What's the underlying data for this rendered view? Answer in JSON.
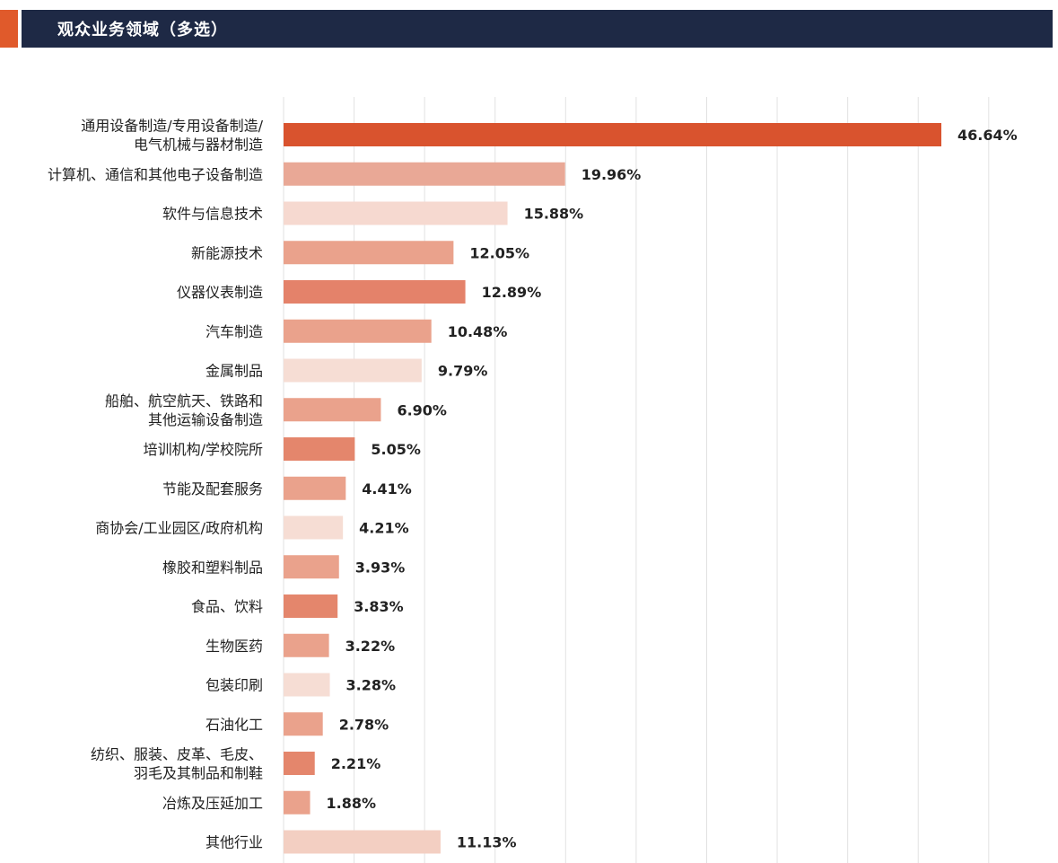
{
  "header": {
    "title": "观众业务领域（多选）",
    "accent_color": "#e05a2b",
    "bar_color": "#1e2945"
  },
  "chart_data": {
    "type": "bar",
    "orientation": "horizontal",
    "title": "观众业务领域（多选）",
    "xlim": [
      0,
      50
    ],
    "grid": true,
    "categories": [
      [
        "通用设备制造/专用设备制造/",
        "电气机械与器材制造"
      ],
      [
        "计算机、通信和其他电子设备制造"
      ],
      [
        "软件与信息技术"
      ],
      [
        "新能源技术"
      ],
      [
        "仪器仪表制造"
      ],
      [
        "汽车制造"
      ],
      [
        "金属制品"
      ],
      [
        "船舶、航空航天、铁路和",
        "其他运输设备制造"
      ],
      [
        "培训机构/学校院所"
      ],
      [
        "节能及配套服务"
      ],
      [
        "商协会/工业园区/政府机构"
      ],
      [
        "橡胶和塑料制品"
      ],
      [
        "食品、饮料"
      ],
      [
        "生物医药"
      ],
      [
        "包装印刷"
      ],
      [
        "石油化工"
      ],
      [
        "纺织、服装、皮革、毛皮、",
        "羽毛及其制品和制鞋"
      ],
      [
        "冶炼及压延加工"
      ],
      [
        "其他行业"
      ]
    ],
    "values": [
      46.64,
      19.96,
      15.88,
      12.05,
      12.89,
      10.48,
      9.79,
      6.9,
      5.05,
      4.41,
      4.21,
      3.93,
      3.83,
      3.22,
      3.28,
      2.78,
      2.21,
      1.88,
      11.13
    ],
    "value_labels": [
      "46.64%",
      "19.96%",
      "15.88%",
      "12.05%",
      "12.89%",
      "10.48%",
      "9.79%",
      "6.90%",
      "5.05%",
      "4.41%",
      "4.21%",
      "3.93%",
      "3.83%",
      "3.22%",
      "3.28%",
      "2.78%",
      "2.21%",
      "1.88%",
      "11.13%"
    ],
    "bar_colors": [
      "#d9532e",
      "#e9a896",
      "#f6d9d0",
      "#eaa28c",
      "#e4826a",
      "#eaa28c",
      "#f6ddd4",
      "#eaa28c",
      "#e4866c",
      "#eaa28c",
      "#f6ddd4",
      "#eaa28c",
      "#e4866c",
      "#eaa28c",
      "#f6ddd4",
      "#eaa28c",
      "#e4866c",
      "#eaa28c",
      "#f3cfc2"
    ],
    "grid_color": "#e2e2e2"
  }
}
